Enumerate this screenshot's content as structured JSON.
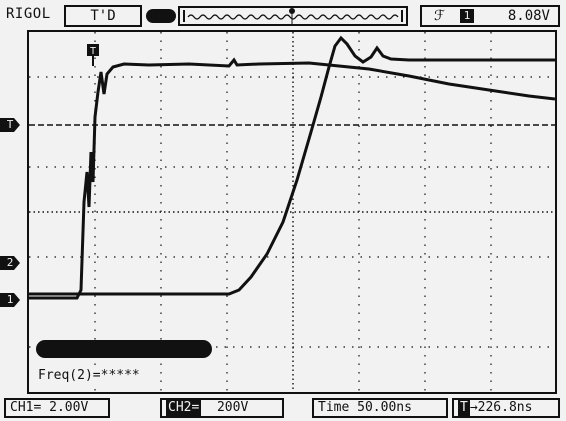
{
  "header": {
    "brand": "RIGOL",
    "mode": "T'D",
    "trigger_channel": "1",
    "trigger_level": "8.08V",
    "trigger_edge_symbol": "ℱ"
  },
  "markers": {
    "trigger": "T",
    "ch2": "2",
    "ch1": "1"
  },
  "footer": {
    "ch1_label": "CH1",
    "ch1_coupling": "=",
    "ch1_scale": "2.00V",
    "ch2_label": "CH2",
    "ch2_coupling": "=",
    "ch2_scale": "200V",
    "time_label": "Time",
    "time_scale": "50.00ns",
    "trigger_offset": "→226.8ns"
  },
  "measurement": {
    "label": "Freq(2)=*****"
  },
  "icons": {
    "trigger_marker": "trigger-icon",
    "channel_marker": "channel-marker-icon"
  }
}
